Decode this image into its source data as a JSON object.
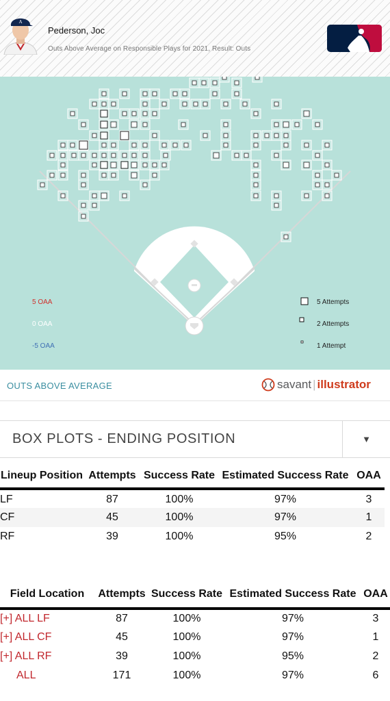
{
  "player": {
    "name": "Pederson, Joc",
    "subtitle": "Outs Above Average on Responsible Plays for 2021, Result: Outs",
    "avatar_icon": "player-headshot-icon",
    "logo_icon": "mlb-logo-icon"
  },
  "field": {
    "background": "#b8e1da",
    "legend_oaa": [
      {
        "label": "5 OAA",
        "color": "#d0312d"
      },
      {
        "label": "0 OAA",
        "color": "#ffffff"
      },
      {
        "label": "-5 OAA",
        "color": "#3f6fb4"
      }
    ],
    "legend_attempts": [
      {
        "label": "5 Attempts"
      },
      {
        "label": "2 Attempts"
      },
      {
        "label": "1 Attempt"
      }
    ]
  },
  "branding": {
    "section_label": "OUTS ABOVE AVERAGE",
    "savant": "savant",
    "illustrator": "illustrator",
    "logo_icon": "savant-baseball-icon"
  },
  "dropdown": {
    "label": "BOX PLOTS - ENDING POSITION",
    "chevron_icon": "caret-down-icon"
  },
  "lineup_table": {
    "headers": [
      "Lineup Position",
      "Attempts",
      "Success Rate",
      "Estimated Success Rate",
      "OAA"
    ],
    "rows": [
      {
        "pos": "LF",
        "attempts": "87",
        "success": "100%",
        "est": "97%",
        "oaa": "3"
      },
      {
        "pos": "CF",
        "attempts": "45",
        "success": "100%",
        "est": "97%",
        "oaa": "1"
      },
      {
        "pos": "RF",
        "attempts": "39",
        "success": "100%",
        "est": "95%",
        "oaa": "2"
      }
    ]
  },
  "field_table": {
    "headers": [
      "Field Location",
      "Attempts",
      "Success Rate",
      "Estimated Success Rate",
      "OAA"
    ],
    "rows": [
      {
        "expand": "[+]",
        "loc": "ALL LF",
        "attempts": "87",
        "success": "100%",
        "est": "97%",
        "oaa": "3"
      },
      {
        "expand": "[+]",
        "loc": "ALL CF",
        "attempts": "45",
        "success": "100%",
        "est": "97%",
        "oaa": "1"
      },
      {
        "expand": "[+]",
        "loc": "ALL RF",
        "attempts": "39",
        "success": "100%",
        "est": "95%",
        "oaa": "2"
      },
      {
        "expand": "",
        "loc": "ALL",
        "attempts": "171",
        "success": "100%",
        "est": "97%",
        "oaa": "6"
      }
    ]
  }
}
